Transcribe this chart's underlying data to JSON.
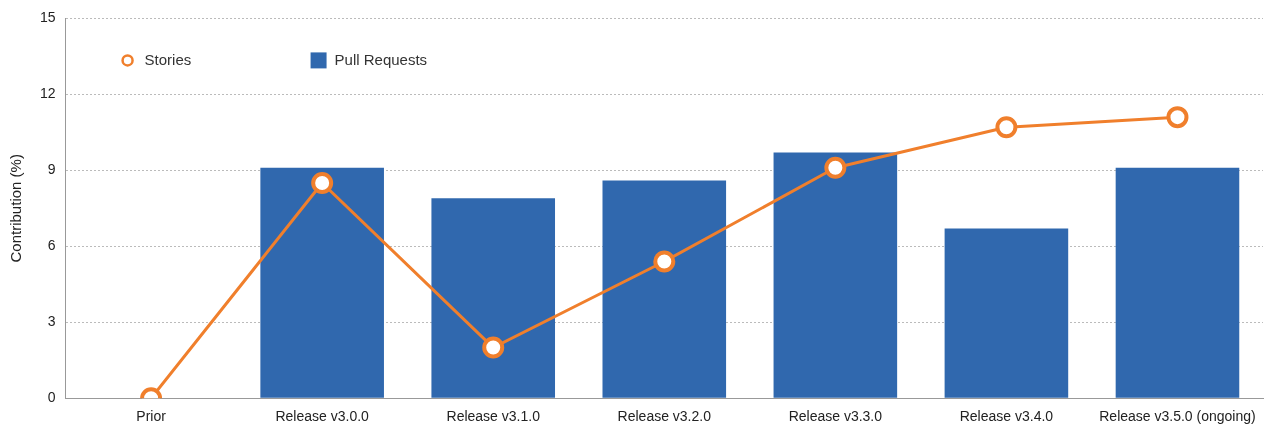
{
  "chart_data": {
    "type": "bar",
    "ylabel": "Contribution (%)",
    "categories": [
      "Prior",
      "Release v3.0.0",
      "Release v3.1.0",
      "Release v3.2.0",
      "Release v3.3.0",
      "Release v3.4.0",
      "Release v3.5.0 (ongoing)"
    ],
    "series": [
      {
        "name": "Stories",
        "type": "line",
        "color": "#f07f2c",
        "values": [
          0,
          8.5,
          2.0,
          5.4,
          9.1,
          10.7,
          11.1
        ]
      },
      {
        "name": "Pull Requests",
        "color": "#3068ae",
        "values": [
          null,
          9.1,
          7.9,
          8.6,
          9.7,
          6.7,
          9.1
        ]
      }
    ],
    "ylim": [
      0,
      15
    ],
    "yticks": [
      0,
      3,
      6,
      9,
      12,
      15
    ],
    "grid": "y",
    "legend": "top left",
    "marker": "circle",
    "line_style": "solid"
  }
}
